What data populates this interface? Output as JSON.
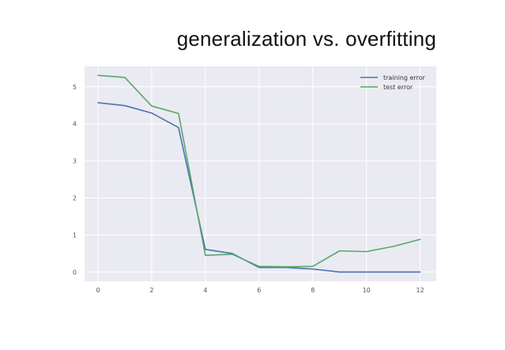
{
  "title": "generalization vs. overfitting",
  "chart_data": {
    "type": "line",
    "title": "generalization vs. overfitting",
    "xlabel": "",
    "ylabel": "",
    "x": [
      0,
      1,
      2,
      3,
      4,
      5,
      6,
      7,
      8,
      9,
      10,
      11,
      12
    ],
    "xlim": [
      -0.5,
      12.6
    ],
    "ylim": [
      -0.25,
      5.55
    ],
    "xticks": [
      0,
      2,
      4,
      6,
      8,
      10,
      12
    ],
    "yticks": [
      0,
      1,
      2,
      3,
      4,
      5
    ],
    "grid": true,
    "background": "#eaeaf2",
    "legend_position": "top-right",
    "series": [
      {
        "name": "training error",
        "color": "#4c72b0",
        "values": [
          4.57,
          4.49,
          4.29,
          3.9,
          0.61,
          0.5,
          0.12,
          0.12,
          0.08,
          0.0,
          0.0,
          0.0,
          0.0
        ]
      },
      {
        "name": "test error",
        "color": "#55a868",
        "values": [
          5.31,
          5.25,
          4.48,
          4.28,
          0.45,
          0.48,
          0.15,
          0.14,
          0.15,
          0.57,
          0.55,
          0.69,
          0.88
        ]
      }
    ]
  }
}
